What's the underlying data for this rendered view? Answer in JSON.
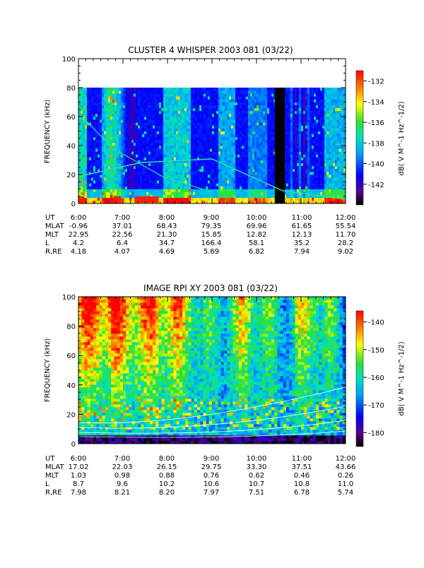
{
  "chart_data": [
    {
      "type": "heatmap",
      "title": "CLUSTER 4 WHISPER 2003 081 (03/22)",
      "ylabel": "FREQUENCY (kHz)",
      "ylim": [
        0,
        100
      ],
      "y_ticks": [
        "0",
        "20",
        "40",
        "60",
        "80",
        "100"
      ],
      "data_max_freq": 80,
      "x_ticks": [
        "6:00",
        "7:00",
        "8:00",
        "9:00",
        "10:00",
        "11:00",
        "12:00"
      ],
      "colorbar": {
        "label": "dB( V M^-1 Hz^-1/2)",
        "min": -144,
        "max": -131,
        "ticks": [
          "-132",
          "-134",
          "-136",
          "-138",
          "-140",
          "-142"
        ],
        "tick_values": [
          -132,
          -134,
          -136,
          -138,
          -140,
          -142
        ]
      },
      "ephemeris": [
        {
          "label": "UT",
          "values": [
            "6:00",
            "7:00",
            "8:00",
            "9:00",
            "10:00",
            "11:00",
            "12:00"
          ]
        },
        {
          "label": "MLAT",
          "values": [
            "-0.96",
            "37.01",
            "68.43",
            "79.35",
            "69.96",
            "61.65",
            "55.54"
          ]
        },
        {
          "label": "MLT",
          "values": [
            "22.95",
            "22.56",
            "21.30",
            "15.85",
            "12.82",
            "12.13",
            "11.70"
          ]
        },
        {
          "label": "L",
          "values": [
            "4.2",
            "6.4",
            "34.7",
            "166.4",
            "58.1",
            "35.2",
            "28.2"
          ]
        },
        {
          "label": "R,RE",
          "values": [
            "4.18",
            "4.07",
            "4.69",
            "5.69",
            "6.82",
            "7.94",
            "9.02"
          ]
        }
      ]
    },
    {
      "type": "heatmap",
      "title": "IMAGE RPI XY 2003 081 (03/22)",
      "ylabel": "FREQUENCY (kHz)",
      "ylim": [
        0,
        100
      ],
      "y_ticks": [
        "0",
        "20",
        "40",
        "60",
        "80",
        "100"
      ],
      "x_ticks": [
        "6:00",
        "7:00",
        "8:00",
        "9:00",
        "10:00",
        "11:00",
        "12:00"
      ],
      "colorbar": {
        "label": "dB( V M^-1 Hz^-1/2)",
        "min": -185,
        "max": -136,
        "ticks": [
          "-140",
          "-150",
          "-160",
          "-170",
          "-180"
        ],
        "tick_values": [
          -140,
          -150,
          -160,
          -170,
          -180
        ]
      },
      "ephemeris": [
        {
          "label": "UT",
          "values": [
            "6:00",
            "7:00",
            "8:00",
            "9:00",
            "10:00",
            "11:00",
            "12:00"
          ]
        },
        {
          "label": "MLAT",
          "values": [
            "17.02",
            "22.03",
            "26.15",
            "29.75",
            "33.30",
            "37.51",
            "43.66"
          ]
        },
        {
          "label": "MLT",
          "values": [
            "1.03",
            "0.98",
            "0.88",
            "0.76",
            "0.62",
            "0.46",
            "0.26"
          ]
        },
        {
          "label": "L",
          "values": [
            "8.7",
            "9.6",
            "10.2",
            "10.6",
            "10.7",
            "10.8",
            "11.0"
          ]
        },
        {
          "label": "R,RE",
          "values": [
            "7.98",
            "8.21",
            "8.20",
            "7.97",
            "7.51",
            "6.78",
            "5.74"
          ]
        }
      ]
    }
  ]
}
